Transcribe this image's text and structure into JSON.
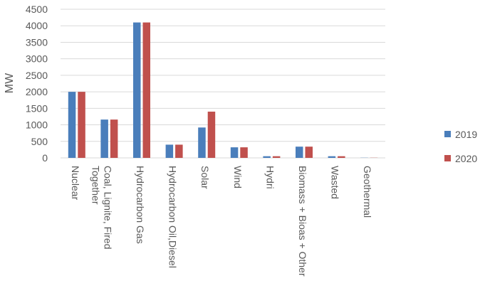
{
  "chart_data": {
    "type": "bar",
    "title": "",
    "xlabel": "",
    "ylabel": "MW",
    "ylim": [
      0,
      4500
    ],
    "yticks": [
      0,
      500,
      1000,
      1500,
      2000,
      2500,
      3000,
      3500,
      4000,
      4500
    ],
    "grid": true,
    "legend_position": "right",
    "categories": [
      "Nuclear",
      "Coal, Lignite, Fired Together",
      "Hydrocarbon Gas",
      "Hydrocarbon Oil,Diesel",
      "Solar",
      "Wind",
      "Hydri",
      "Biomass + Bioas + Other",
      "Wasted",
      "Geothermal"
    ],
    "series": [
      {
        "name": "2019",
        "color": "#4a7ebb",
        "values": [
          2000,
          1160,
          4100,
          400,
          920,
          320,
          50,
          340,
          50,
          5
        ]
      },
      {
        "name": "2020",
        "color": "#c0504d",
        "values": [
          2000,
          1160,
          4100,
          400,
          1400,
          320,
          50,
          340,
          50,
          5
        ]
      }
    ]
  }
}
